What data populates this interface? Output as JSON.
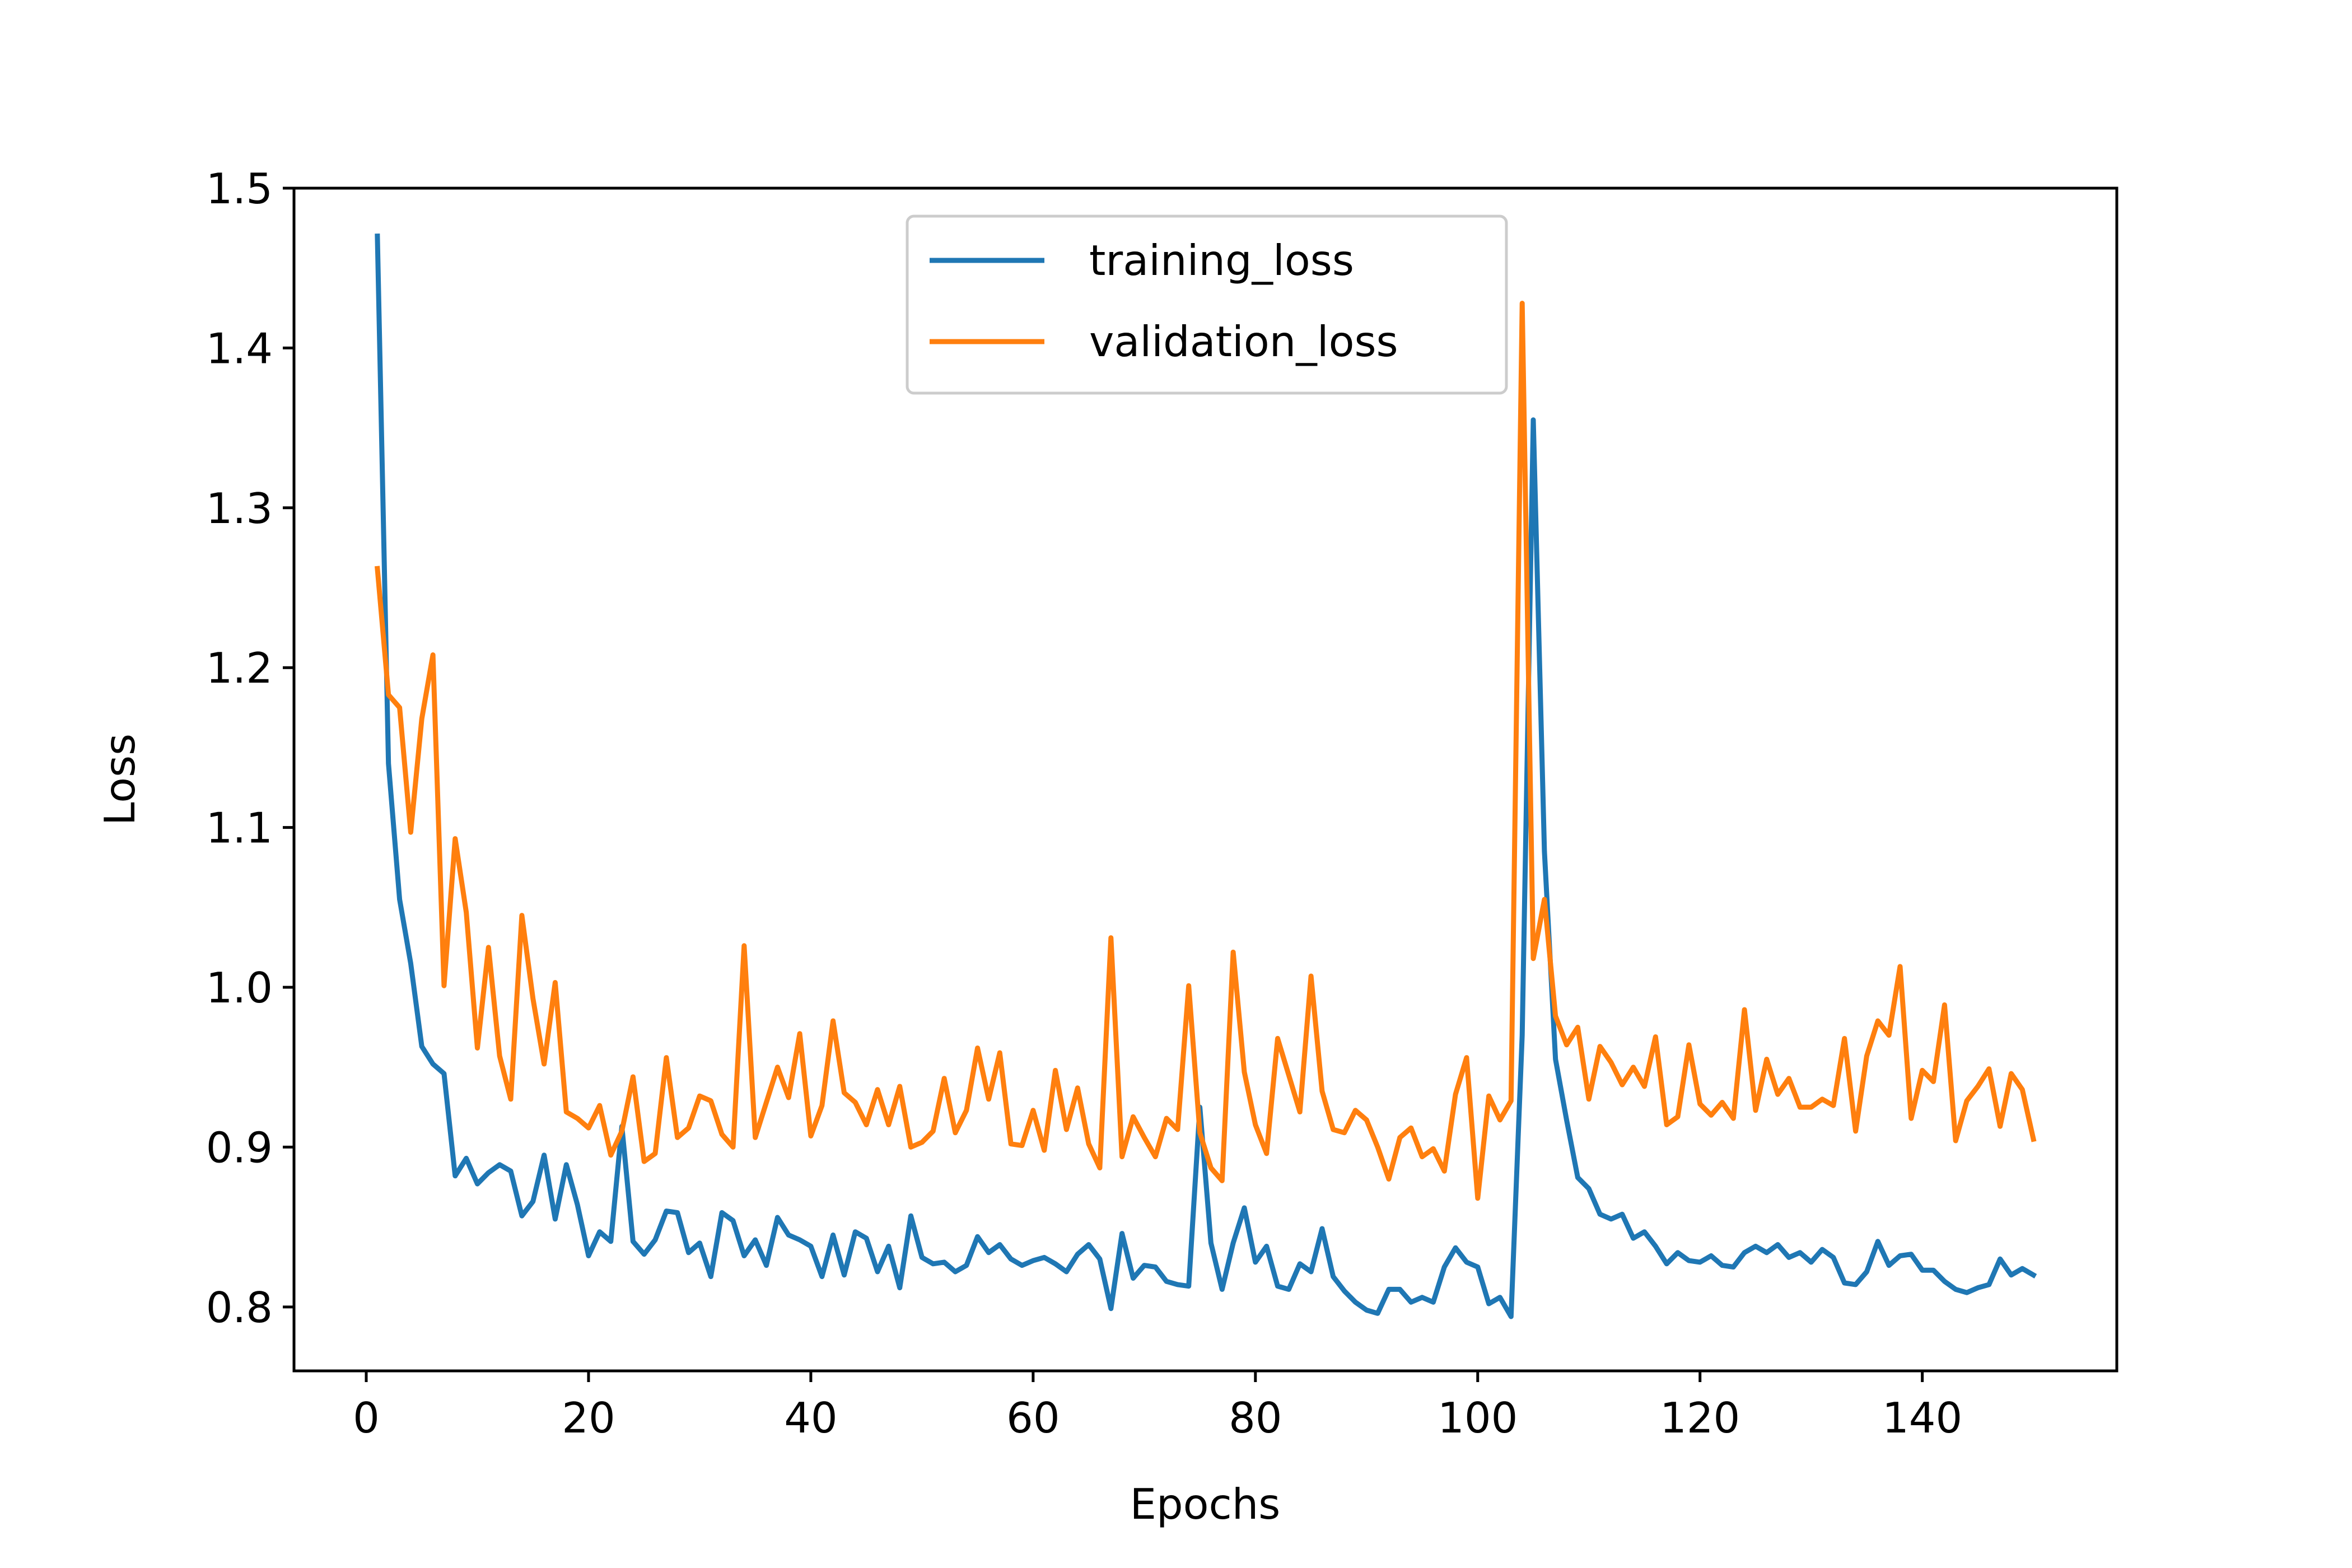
{
  "chart_data": {
    "type": "line",
    "title": "",
    "xlabel": "Epochs",
    "ylabel": "Loss",
    "xlim": [
      -6.5,
      157.5
    ],
    "ylim": [
      0.76,
      1.5
    ],
    "xticks": [
      0,
      20,
      40,
      60,
      80,
      100,
      120,
      140
    ],
    "yticks": [
      0.8,
      0.9,
      1.0,
      1.1,
      1.2,
      1.3,
      1.4,
      1.5
    ],
    "ytick_labels": [
      "0.8",
      "0.9",
      "1.0",
      "1.1",
      "1.2",
      "1.3",
      "1.4",
      "1.5"
    ],
    "grid": false,
    "legend_position": "top-center",
    "x": [
      1,
      2,
      3,
      4,
      5,
      6,
      7,
      8,
      9,
      10,
      11,
      12,
      13,
      14,
      15,
      16,
      17,
      18,
      19,
      20,
      21,
      22,
      23,
      24,
      25,
      26,
      27,
      28,
      29,
      30,
      31,
      32,
      33,
      34,
      35,
      36,
      37,
      38,
      39,
      40,
      41,
      42,
      43,
      44,
      45,
      46,
      47,
      48,
      49,
      50,
      51,
      52,
      53,
      54,
      55,
      56,
      57,
      58,
      59,
      60,
      61,
      62,
      63,
      64,
      65,
      66,
      67,
      68,
      69,
      70,
      71,
      72,
      73,
      74,
      75,
      76,
      77,
      78,
      79,
      80,
      81,
      82,
      83,
      84,
      85,
      86,
      87,
      88,
      89,
      90,
      91,
      92,
      93,
      94,
      95,
      96,
      97,
      98,
      99,
      100,
      101,
      102,
      103,
      104,
      105,
      106,
      107,
      108,
      109,
      110,
      111,
      112,
      113,
      114,
      115,
      116,
      117,
      118,
      119,
      120,
      121,
      122,
      123,
      124,
      125,
      126,
      127,
      128,
      129,
      130,
      131,
      132,
      133,
      134,
      135,
      136,
      137,
      138,
      139,
      140,
      141,
      142,
      143,
      144,
      145,
      146,
      147,
      148,
      149,
      150
    ],
    "series": [
      {
        "name": "training_loss",
        "color": "#1f77b4",
        "values": [
          1.47,
          1.14,
          1.055,
          1.015,
          0.963,
          0.952,
          0.946,
          0.882,
          0.893,
          0.877,
          0.884,
          0.889,
          0.885,
          0.857,
          0.866,
          0.895,
          0.855,
          0.889,
          0.864,
          0.832,
          0.847,
          0.841,
          0.913,
          0.841,
          0.833,
          0.842,
          0.86,
          0.859,
          0.834,
          0.84,
          0.819,
          0.859,
          0.854,
          0.832,
          0.842,
          0.826,
          0.856,
          0.845,
          0.842,
          0.838,
          0.819,
          0.845,
          0.82,
          0.847,
          0.843,
          0.822,
          0.838,
          0.812,
          0.857,
          0.831,
          0.827,
          0.828,
          0.822,
          0.826,
          0.844,
          0.834,
          0.839,
          0.83,
          0.826,
          0.829,
          0.831,
          0.827,
          0.822,
          0.833,
          0.839,
          0.83,
          0.799,
          0.846,
          0.818,
          0.826,
          0.825,
          0.816,
          0.814,
          0.813,
          0.925,
          0.84,
          0.811,
          0.84,
          0.862,
          0.828,
          0.838,
          0.813,
          0.811,
          0.827,
          0.822,
          0.849,
          0.819,
          0.81,
          0.803,
          0.798,
          0.796,
          0.811,
          0.811,
          0.803,
          0.806,
          0.803,
          0.825,
          0.837,
          0.828,
          0.825,
          0.802,
          0.806,
          0.794,
          0.97,
          1.355,
          1.085,
          0.955,
          0.917,
          0.881,
          0.874,
          0.858,
          0.855,
          0.858,
          0.843,
          0.847,
          0.838,
          0.827,
          0.834,
          0.829,
          0.828,
          0.832,
          0.826,
          0.825,
          0.834,
          0.838,
          0.834,
          0.839,
          0.831,
          0.834,
          0.828,
          0.836,
          0.831,
          0.815,
          0.814,
          0.822,
          0.841,
          0.826,
          0.832,
          0.833,
          0.823,
          0.823,
          0.816,
          0.811,
          0.809,
          0.812,
          0.814,
          0.83,
          0.82,
          0.824,
          0.82
        ]
      },
      {
        "name": "validation_loss",
        "color": "#ff7f0e",
        "values": [
          1.262,
          1.183,
          1.175,
          1.097,
          1.168,
          1.208,
          1.001,
          1.093,
          1.047,
          0.962,
          1.025,
          0.957,
          0.93,
          1.045,
          0.993,
          0.952,
          1.003,
          0.922,
          0.918,
          0.912,
          0.926,
          0.895,
          0.91,
          0.944,
          0.891,
          0.896,
          0.956,
          0.906,
          0.912,
          0.932,
          0.929,
          0.908,
          0.9,
          1.026,
          0.906,
          0.928,
          0.95,
          0.931,
          0.971,
          0.907,
          0.926,
          0.979,
          0.934,
          0.928,
          0.914,
          0.936,
          0.914,
          0.938,
          0.9,
          0.903,
          0.91,
          0.943,
          0.909,
          0.923,
          0.962,
          0.93,
          0.959,
          0.902,
          0.901,
          0.923,
          0.898,
          0.948,
          0.911,
          0.937,
          0.902,
          0.887,
          1.031,
          0.894,
          0.919,
          0.906,
          0.894,
          0.918,
          0.911,
          1.001,
          0.909,
          0.887,
          0.879,
          1.022,
          0.947,
          0.914,
          0.896,
          0.968,
          0.945,
          0.922,
          1.007,
          0.935,
          0.911,
          0.909,
          0.923,
          0.917,
          0.9,
          0.88,
          0.906,
          0.912,
          0.894,
          0.899,
          0.885,
          0.933,
          0.956,
          0.868,
          0.932,
          0.917,
          0.929,
          1.428,
          1.018,
          1.055,
          0.982,
          0.964,
          0.975,
          0.93,
          0.963,
          0.953,
          0.939,
          0.95,
          0.938,
          0.969,
          0.914,
          0.919,
          0.964,
          0.927,
          0.92,
          0.928,
          0.918,
          0.986,
          0.923,
          0.955,
          0.933,
          0.943,
          0.925,
          0.925,
          0.93,
          0.926,
          0.968,
          0.91,
          0.957,
          0.979,
          0.97,
          1.013,
          0.918,
          0.948,
          0.941,
          0.989,
          0.904,
          0.929,
          0.938,
          0.949,
          0.913,
          0.946,
          0.936,
          0.905
        ]
      }
    ]
  }
}
